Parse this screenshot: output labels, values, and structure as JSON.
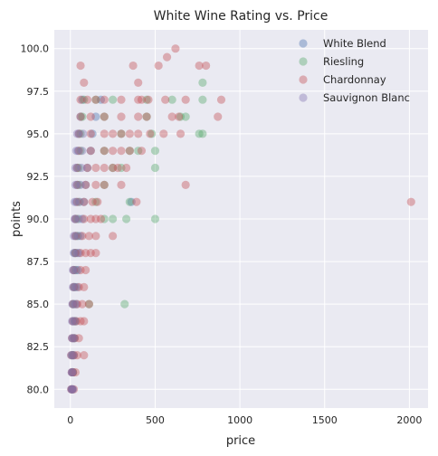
{
  "chart_data": {
    "type": "scatter",
    "title": "White Wine Rating vs. Price",
    "xlabel": "price",
    "ylabel": "points",
    "xlim": [
      -95,
      2110
    ],
    "ylim": [
      78.9,
      101.1
    ],
    "xticks": [
      0,
      500,
      1000,
      1500,
      2000
    ],
    "yticks": [
      80.0,
      82.5,
      85.0,
      87.5,
      90.0,
      92.5,
      95.0,
      97.5,
      100.0
    ],
    "xtick_labels": [
      "0",
      "500",
      "1000",
      "1500",
      "2000"
    ],
    "ytick_labels": [
      "80.0",
      "82.5",
      "85.0",
      "87.5",
      "90.0",
      "92.5",
      "95.0",
      "97.5",
      "100.0"
    ],
    "grid": true,
    "legend_position": "top-right",
    "series": [
      {
        "name": "White Blend",
        "color": "#4C72B0",
        "points": [
          [
            8,
            80
          ],
          [
            12,
            80
          ],
          [
            10,
            81
          ],
          [
            15,
            81
          ],
          [
            10,
            82
          ],
          [
            20,
            82
          ],
          [
            12,
            83
          ],
          [
            25,
            83
          ],
          [
            15,
            84
          ],
          [
            30,
            84
          ],
          [
            15,
            85
          ],
          [
            35,
            85
          ],
          [
            20,
            86
          ],
          [
            40,
            86
          ],
          [
            20,
            87
          ],
          [
            45,
            87
          ],
          [
            25,
            88
          ],
          [
            50,
            88
          ],
          [
            30,
            89
          ],
          [
            60,
            89
          ],
          [
            30,
            90
          ],
          [
            70,
            90
          ],
          [
            35,
            91
          ],
          [
            80,
            91
          ],
          [
            360,
            91
          ],
          [
            40,
            92
          ],
          [
            90,
            92
          ],
          [
            40,
            93
          ],
          [
            100,
            93
          ],
          [
            45,
            94
          ],
          [
            120,
            94
          ],
          [
            50,
            95
          ],
          [
            130,
            95
          ],
          [
            60,
            96
          ],
          [
            150,
            96
          ],
          [
            70,
            97
          ],
          [
            180,
            97
          ]
        ]
      },
      {
        "name": "Riesling",
        "color": "#55A868",
        "points": [
          [
            10,
            80
          ],
          [
            15,
            81
          ],
          [
            12,
            82
          ],
          [
            20,
            83
          ],
          [
            25,
            84
          ],
          [
            20,
            85
          ],
          [
            110,
            85
          ],
          [
            320,
            85
          ],
          [
            25,
            86
          ],
          [
            30,
            87
          ],
          [
            30,
            88
          ],
          [
            40,
            89
          ],
          [
            40,
            90
          ],
          [
            200,
            90
          ],
          [
            250,
            90
          ],
          [
            330,
            90
          ],
          [
            500,
            90
          ],
          [
            50,
            91
          ],
          [
            150,
            91
          ],
          [
            350,
            91
          ],
          [
            50,
            92
          ],
          [
            200,
            92
          ],
          [
            50,
            93
          ],
          [
            250,
            93
          ],
          [
            300,
            93
          ],
          [
            500,
            93
          ],
          [
            60,
            94
          ],
          [
            200,
            94
          ],
          [
            350,
            94
          ],
          [
            400,
            94
          ],
          [
            500,
            94
          ],
          [
            60,
            95
          ],
          [
            300,
            95
          ],
          [
            480,
            95
          ],
          [
            760,
            95
          ],
          [
            780,
            95
          ],
          [
            70,
            96
          ],
          [
            200,
            96
          ],
          [
            450,
            96
          ],
          [
            650,
            96
          ],
          [
            680,
            96
          ],
          [
            80,
            97
          ],
          [
            150,
            97
          ],
          [
            250,
            97
          ],
          [
            450,
            97
          ],
          [
            600,
            97
          ],
          [
            780,
            97
          ],
          [
            780,
            98
          ]
        ]
      },
      {
        "name": "Chardonnay",
        "color": "#C44E52",
        "points": [
          [
            5,
            80
          ],
          [
            10,
            80
          ],
          [
            20,
            80
          ],
          [
            8,
            81
          ],
          [
            15,
            81
          ],
          [
            30,
            81
          ],
          [
            5,
            82
          ],
          [
            20,
            82
          ],
          [
            40,
            82
          ],
          [
            80,
            82
          ],
          [
            10,
            83
          ],
          [
            25,
            83
          ],
          [
            50,
            83
          ],
          [
            15,
            84
          ],
          [
            35,
            84
          ],
          [
            60,
            84
          ],
          [
            80,
            84
          ],
          [
            15,
            85
          ],
          [
            40,
            85
          ],
          [
            70,
            85
          ],
          [
            110,
            85
          ],
          [
            20,
            86
          ],
          [
            50,
            86
          ],
          [
            80,
            86
          ],
          [
            20,
            87
          ],
          [
            60,
            87
          ],
          [
            90,
            87
          ],
          [
            30,
            88
          ],
          [
            60,
            88
          ],
          [
            90,
            88
          ],
          [
            120,
            88
          ],
          [
            150,
            88
          ],
          [
            30,
            89
          ],
          [
            70,
            89
          ],
          [
            110,
            89
          ],
          [
            150,
            89
          ],
          [
            250,
            89
          ],
          [
            30,
            90
          ],
          [
            80,
            90
          ],
          [
            120,
            90
          ],
          [
            150,
            90
          ],
          [
            180,
            90
          ],
          [
            40,
            91
          ],
          [
            80,
            91
          ],
          [
            130,
            91
          ],
          [
            160,
            91
          ],
          [
            390,
            91
          ],
          [
            2010,
            91
          ],
          [
            40,
            92
          ],
          [
            90,
            92
          ],
          [
            150,
            92
          ],
          [
            200,
            92
          ],
          [
            300,
            92
          ],
          [
            680,
            92
          ],
          [
            40,
            93
          ],
          [
            100,
            93
          ],
          [
            150,
            93
          ],
          [
            200,
            93
          ],
          [
            250,
            93
          ],
          [
            280,
            93
          ],
          [
            330,
            93
          ],
          [
            50,
            94
          ],
          [
            120,
            94
          ],
          [
            200,
            94
          ],
          [
            250,
            94
          ],
          [
            300,
            94
          ],
          [
            350,
            94
          ],
          [
            420,
            94
          ],
          [
            50,
            95
          ],
          [
            120,
            95
          ],
          [
            200,
            95
          ],
          [
            250,
            95
          ],
          [
            300,
            95
          ],
          [
            350,
            95
          ],
          [
            400,
            95
          ],
          [
            470,
            95
          ],
          [
            550,
            95
          ],
          [
            650,
            95
          ],
          [
            60,
            96
          ],
          [
            120,
            96
          ],
          [
            200,
            96
          ],
          [
            300,
            96
          ],
          [
            400,
            96
          ],
          [
            450,
            96
          ],
          [
            600,
            96
          ],
          [
            640,
            96
          ],
          [
            870,
            96
          ],
          [
            60,
            97
          ],
          [
            100,
            97
          ],
          [
            150,
            97
          ],
          [
            200,
            97
          ],
          [
            300,
            97
          ],
          [
            400,
            97
          ],
          [
            420,
            97
          ],
          [
            460,
            97
          ],
          [
            560,
            97
          ],
          [
            680,
            97
          ],
          [
            890,
            97
          ],
          [
            80,
            98
          ],
          [
            400,
            98
          ],
          [
            60,
            99
          ],
          [
            370,
            99
          ],
          [
            520,
            99
          ],
          [
            760,
            99
          ],
          [
            800,
            99
          ],
          [
            620,
            100
          ],
          [
            570,
            99.5
          ]
        ]
      },
      {
        "name": "Sauvignon Blanc",
        "color": "#8172B2",
        "points": [
          [
            5,
            80
          ],
          [
            10,
            80
          ],
          [
            15,
            80
          ],
          [
            8,
            81
          ],
          [
            12,
            81
          ],
          [
            5,
            82
          ],
          [
            15,
            82
          ],
          [
            10,
            83
          ],
          [
            20,
            83
          ],
          [
            10,
            84
          ],
          [
            25,
            84
          ],
          [
            12,
            85
          ],
          [
            28,
            85
          ],
          [
            15,
            86
          ],
          [
            30,
            86
          ],
          [
            15,
            87
          ],
          [
            35,
            87
          ],
          [
            20,
            88
          ],
          [
            40,
            88
          ],
          [
            20,
            89
          ],
          [
            45,
            89
          ],
          [
            25,
            90
          ],
          [
            50,
            90
          ],
          [
            25,
            91
          ],
          [
            55,
            91
          ],
          [
            30,
            92
          ],
          [
            60,
            92
          ],
          [
            30,
            93
          ],
          [
            65,
            93
          ],
          [
            35,
            94
          ],
          [
            70,
            94
          ],
          [
            40,
            95
          ],
          [
            75,
            95
          ]
        ]
      }
    ]
  }
}
